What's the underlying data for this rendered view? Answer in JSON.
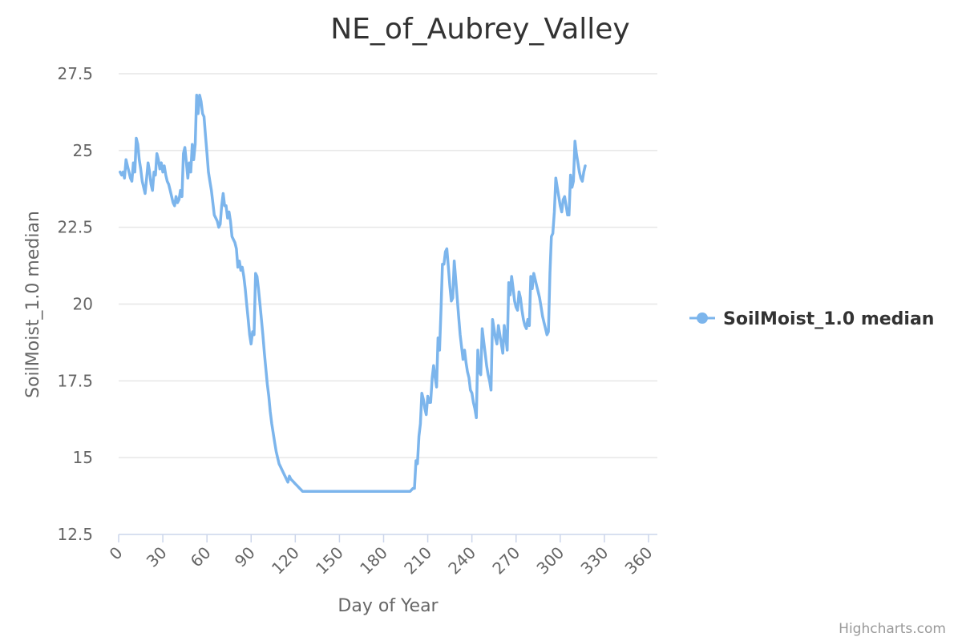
{
  "chart_data": {
    "type": "line",
    "title": "NE_of_Aubrey_Valley",
    "xlabel": "Day of Year",
    "ylabel": "SoilMoist_1.0 median",
    "xlim": [
      0,
      366
    ],
    "ylim": [
      12.5,
      27.5
    ],
    "xticks": [
      0,
      30,
      60,
      90,
      120,
      150,
      180,
      210,
      240,
      270,
      300,
      330,
      360
    ],
    "yticks": [
      12.5,
      15,
      17.5,
      20,
      22.5,
      25,
      27.5
    ],
    "ytick_labels": [
      "12.5",
      "15",
      "17.5",
      "20",
      "22.5",
      "25",
      "27.5"
    ],
    "grid": true,
    "legend_position": "right",
    "series": [
      {
        "name": "SoilMoist_1.0 median",
        "color": "#7cb5ec",
        "points": [
          [
            1,
            24.3
          ],
          [
            2,
            24.2
          ],
          [
            3,
            24.3
          ],
          [
            4,
            24.1
          ],
          [
            5,
            24.7
          ],
          [
            6,
            24.5
          ],
          [
            7,
            24.3
          ],
          [
            8,
            24.1
          ],
          [
            9,
            24.0
          ],
          [
            10,
            24.6
          ],
          [
            11,
            24.3
          ],
          [
            12,
            25.4
          ],
          [
            13,
            25.2
          ],
          [
            14,
            24.7
          ],
          [
            15,
            24.4
          ],
          [
            16,
            24.0
          ],
          [
            17,
            23.8
          ],
          [
            18,
            23.6
          ],
          [
            19,
            24.1
          ],
          [
            20,
            24.6
          ],
          [
            21,
            24.3
          ],
          [
            22,
            23.9
          ],
          [
            23,
            23.7
          ],
          [
            24,
            24.3
          ],
          [
            25,
            24.2
          ],
          [
            26,
            24.9
          ],
          [
            27,
            24.7
          ],
          [
            28,
            24.4
          ],
          [
            29,
            24.6
          ],
          [
            30,
            24.3
          ],
          [
            31,
            24.5
          ],
          [
            32,
            24.2
          ],
          [
            33,
            24.0
          ],
          [
            34,
            23.9
          ],
          [
            35,
            23.7
          ],
          [
            36,
            23.5
          ],
          [
            37,
            23.3
          ],
          [
            38,
            23.2
          ],
          [
            39,
            23.5
          ],
          [
            40,
            23.3
          ],
          [
            41,
            23.4
          ],
          [
            42,
            23.7
          ],
          [
            43,
            23.5
          ],
          [
            44,
            24.9
          ],
          [
            45,
            25.1
          ],
          [
            46,
            24.6
          ],
          [
            47,
            24.1
          ],
          [
            48,
            24.6
          ],
          [
            49,
            24.3
          ],
          [
            50,
            25.2
          ],
          [
            51,
            24.7
          ],
          [
            52,
            25.2
          ],
          [
            53,
            26.8
          ],
          [
            54,
            26.2
          ],
          [
            55,
            26.8
          ],
          [
            56,
            26.6
          ],
          [
            57,
            26.2
          ],
          [
            58,
            26.1
          ],
          [
            59,
            25.5
          ],
          [
            60,
            24.9
          ],
          [
            61,
            24.3
          ],
          [
            62,
            24.0
          ],
          [
            63,
            23.7
          ],
          [
            64,
            23.3
          ],
          [
            65,
            22.9
          ],
          [
            66,
            22.8
          ],
          [
            67,
            22.7
          ],
          [
            68,
            22.5
          ],
          [
            69,
            22.6
          ],
          [
            70,
            23.2
          ],
          [
            71,
            23.6
          ],
          [
            72,
            23.2
          ],
          [
            73,
            23.2
          ],
          [
            74,
            22.8
          ],
          [
            75,
            23.0
          ],
          [
            76,
            22.7
          ],
          [
            77,
            22.2
          ],
          [
            78,
            22.1
          ],
          [
            79,
            22.0
          ],
          [
            80,
            21.8
          ],
          [
            81,
            21.2
          ],
          [
            82,
            21.4
          ],
          [
            83,
            21.1
          ],
          [
            84,
            21.2
          ],
          [
            85,
            20.9
          ],
          [
            86,
            20.5
          ],
          [
            87,
            20.0
          ],
          [
            88,
            19.5
          ],
          [
            89,
            19.0
          ],
          [
            90,
            18.7
          ],
          [
            91,
            19.1
          ],
          [
            92,
            19.0
          ],
          [
            93,
            21.0
          ],
          [
            94,
            20.9
          ],
          [
            95,
            20.5
          ],
          [
            96,
            20.0
          ],
          [
            97,
            19.5
          ],
          [
            98,
            19.0
          ],
          [
            99,
            18.4
          ],
          [
            100,
            17.9
          ],
          [
            101,
            17.4
          ],
          [
            102,
            17.0
          ],
          [
            103,
            16.5
          ],
          [
            104,
            16.1
          ],
          [
            105,
            15.8
          ],
          [
            106,
            15.5
          ],
          [
            107,
            15.2
          ],
          [
            108,
            15.0
          ],
          [
            109,
            14.8
          ],
          [
            110,
            14.7
          ],
          [
            111,
            14.6
          ],
          [
            112,
            14.5
          ],
          [
            113,
            14.4
          ],
          [
            114,
            14.3
          ],
          [
            115,
            14.2
          ],
          [
            116,
            14.4
          ],
          [
            117,
            14.3
          ],
          [
            118,
            14.25
          ],
          [
            119,
            14.2
          ],
          [
            120,
            14.15
          ],
          [
            121,
            14.1
          ],
          [
            122,
            14.05
          ],
          [
            123,
            14.0
          ],
          [
            124,
            13.95
          ],
          [
            125,
            13.9
          ],
          [
            130,
            13.9
          ],
          [
            135,
            13.9
          ],
          [
            140,
            13.9
          ],
          [
            145,
            13.9
          ],
          [
            150,
            13.9
          ],
          [
            155,
            13.9
          ],
          [
            160,
            13.9
          ],
          [
            165,
            13.9
          ],
          [
            170,
            13.9
          ],
          [
            175,
            13.9
          ],
          [
            180,
            13.9
          ],
          [
            185,
            13.9
          ],
          [
            190,
            13.9
          ],
          [
            198,
            13.9
          ],
          [
            200,
            14.0
          ],
          [
            201,
            14.0
          ],
          [
            202,
            14.9
          ],
          [
            203,
            14.8
          ],
          [
            204,
            15.7
          ],
          [
            205,
            16.1
          ],
          [
            206,
            17.1
          ],
          [
            207,
            16.9
          ],
          [
            208,
            16.6
          ],
          [
            209,
            16.4
          ],
          [
            210,
            17.0
          ],
          [
            211,
            16.8
          ],
          [
            212,
            16.8
          ],
          [
            213,
            17.6
          ],
          [
            214,
            18.0
          ],
          [
            215,
            17.6
          ],
          [
            216,
            17.3
          ],
          [
            217,
            18.9
          ],
          [
            218,
            18.5
          ],
          [
            219,
            19.8
          ],
          [
            220,
            21.3
          ],
          [
            221,
            21.3
          ],
          [
            222,
            21.7
          ],
          [
            223,
            21.8
          ],
          [
            224,
            21.2
          ],
          [
            225,
            20.6
          ],
          [
            226,
            20.1
          ],
          [
            227,
            20.2
          ],
          [
            228,
            21.4
          ],
          [
            229,
            20.8
          ],
          [
            230,
            20.2
          ],
          [
            231,
            19.6
          ],
          [
            232,
            19.0
          ],
          [
            233,
            18.6
          ],
          [
            234,
            18.2
          ],
          [
            235,
            18.5
          ],
          [
            236,
            18.1
          ],
          [
            237,
            17.8
          ],
          [
            238,
            17.6
          ],
          [
            239,
            17.2
          ],
          [
            240,
            17.1
          ],
          [
            241,
            16.8
          ],
          [
            242,
            16.6
          ],
          [
            243,
            16.3
          ],
          [
            244,
            18.5
          ],
          [
            245,
            17.8
          ],
          [
            246,
            17.7
          ],
          [
            247,
            19.2
          ],
          [
            248,
            18.8
          ],
          [
            249,
            18.4
          ],
          [
            250,
            18.0
          ],
          [
            251,
            17.7
          ],
          [
            252,
            17.5
          ],
          [
            253,
            17.2
          ],
          [
            254,
            19.5
          ],
          [
            255,
            19.2
          ],
          [
            256,
            18.9
          ],
          [
            257,
            18.7
          ],
          [
            258,
            19.3
          ],
          [
            259,
            19.0
          ],
          [
            260,
            18.7
          ],
          [
            261,
            18.4
          ],
          [
            262,
            19.3
          ],
          [
            263,
            18.9
          ],
          [
            264,
            18.5
          ],
          [
            265,
            20.7
          ],
          [
            266,
            20.3
          ],
          [
            267,
            20.9
          ],
          [
            268,
            20.5
          ],
          [
            269,
            20.1
          ],
          [
            270,
            19.9
          ],
          [
            271,
            19.8
          ],
          [
            272,
            20.4
          ],
          [
            273,
            20.2
          ],
          [
            274,
            19.8
          ],
          [
            275,
            19.5
          ],
          [
            276,
            19.3
          ],
          [
            277,
            19.2
          ],
          [
            278,
            19.5
          ],
          [
            279,
            19.3
          ],
          [
            280,
            20.9
          ],
          [
            281,
            20.5
          ],
          [
            282,
            21.0
          ],
          [
            283,
            20.8
          ],
          [
            284,
            20.6
          ],
          [
            285,
            20.4
          ],
          [
            286,
            20.2
          ],
          [
            287,
            19.9
          ],
          [
            288,
            19.6
          ],
          [
            289,
            19.4
          ],
          [
            290,
            19.2
          ],
          [
            291,
            19.0
          ],
          [
            292,
            19.1
          ],
          [
            293,
            21.0
          ],
          [
            294,
            22.2
          ],
          [
            295,
            22.3
          ],
          [
            296,
            23.0
          ],
          [
            297,
            24.1
          ],
          [
            298,
            23.8
          ],
          [
            299,
            23.5
          ],
          [
            300,
            23.2
          ],
          [
            301,
            23.0
          ],
          [
            302,
            23.4
          ],
          [
            303,
            23.5
          ],
          [
            304,
            23.2
          ],
          [
            305,
            22.9
          ],
          [
            306,
            22.9
          ],
          [
            307,
            24.2
          ],
          [
            308,
            23.8
          ],
          [
            309,
            24.0
          ],
          [
            310,
            25.3
          ],
          [
            311,
            24.9
          ],
          [
            312,
            24.6
          ],
          [
            313,
            24.3
          ],
          [
            314,
            24.1
          ],
          [
            315,
            24.0
          ],
          [
            316,
            24.3
          ],
          [
            317,
            24.5
          ]
        ]
      }
    ]
  },
  "credits": "Highcharts.com"
}
